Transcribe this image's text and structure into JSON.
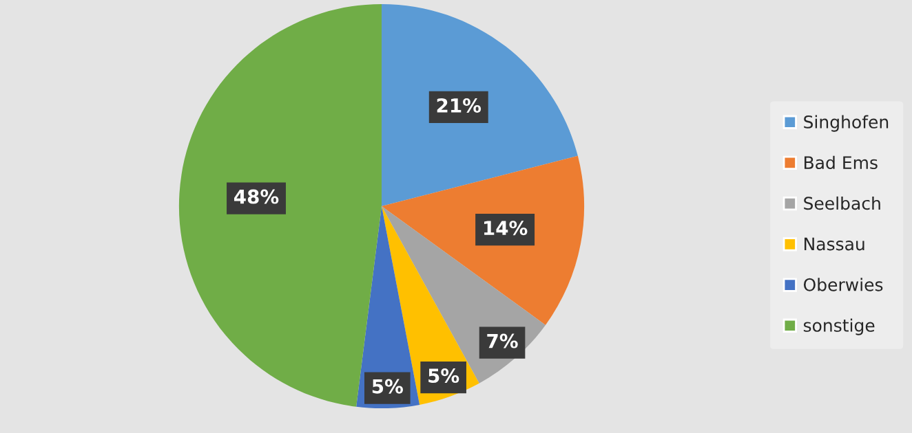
{
  "chart_data": {
    "type": "pie",
    "categories": [
      "Singhofen",
      "Bad Ems",
      "Seelbach",
      "Nassau",
      "Oberwies",
      "sonstige"
    ],
    "values": [
      21,
      14,
      7,
      5,
      5,
      48
    ],
    "value_labels": [
      "21%",
      "14%",
      "7%",
      "5%",
      "5%",
      "48%"
    ],
    "colors": [
      "#5b9bd5",
      "#ed7d31",
      "#a5a5a5",
      "#ffc000",
      "#4472c4",
      "#70ad47"
    ],
    "legend": "right"
  }
}
